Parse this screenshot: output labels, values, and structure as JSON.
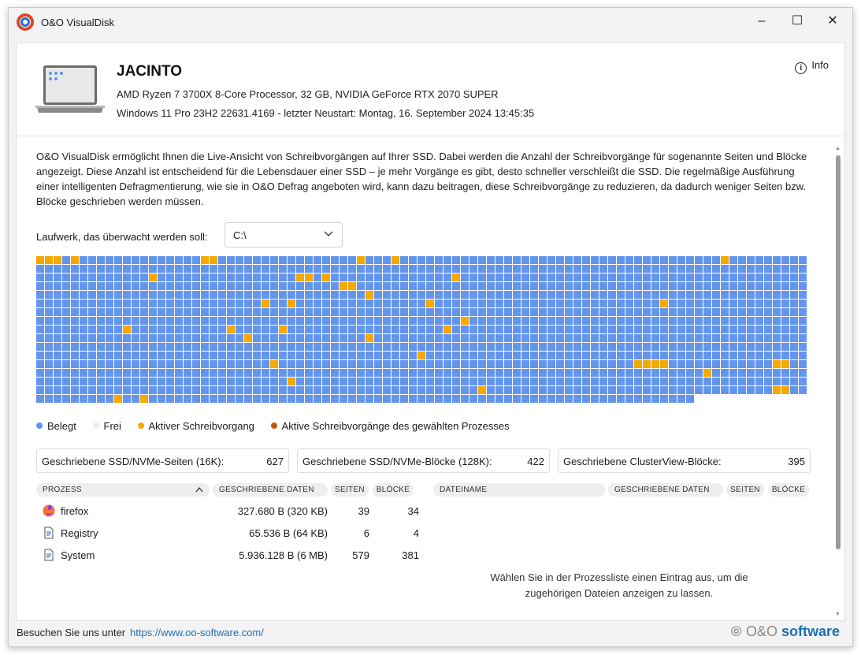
{
  "window": {
    "title": "O&O VisualDisk"
  },
  "header": {
    "hostname": "JACINTO",
    "hardware": "AMD Ryzen 7 3700X 8-Core Processor, 32 GB, NVIDIA GeForce RTX 2070 SUPER",
    "os": "Windows 11 Pro 23H2 22631.4169 - letzter Neustart: Montag, 16. September 2024 13:45:35",
    "info_label": "Info"
  },
  "description": "O&O VisualDisk ermöglicht Ihnen die Live-Ansicht von Schreibvorgängen auf Ihrer SSD. Dabei werden die Anzahl der Schreibvorgänge für sogenannte Seiten und Blöcke angezeigt. Diese Anzahl ist entscheidend für die Lebensdauer einer SSD – je mehr Vorgänge es gibt, desto schneller verschleißt die SSD. Die regelmäßige Ausführung einer intelligenten Defragmentierung, wie sie in O&O Defrag angeboten wird, kann dazu beitragen, diese Schreibvorgänge zu reduzieren, da dadurch weniger Seiten bzw. Blöcke geschrieben werden müssen.",
  "drive": {
    "label": "Laufwerk, das überwacht werden soll:",
    "selected": "C:\\"
  },
  "colors": {
    "occupied": "#6495ed",
    "free": "#eeeeee",
    "active": "#f5a800",
    "process_active": "#c05a00"
  },
  "block_map": {
    "columns": 89,
    "full_rows": 16,
    "last_row_blocks": 76,
    "active_blocks": [
      [
        0,
        0
      ],
      [
        0,
        1
      ],
      [
        0,
        2
      ],
      [
        0,
        4
      ],
      [
        0,
        19
      ],
      [
        0,
        20
      ],
      [
        0,
        37
      ],
      [
        0,
        41
      ],
      [
        0,
        79
      ],
      [
        2,
        13
      ],
      [
        2,
        30
      ],
      [
        2,
        31
      ],
      [
        2,
        33
      ],
      [
        2,
        48
      ],
      [
        3,
        35
      ],
      [
        3,
        36
      ],
      [
        4,
        38
      ],
      [
        5,
        26
      ],
      [
        5,
        29
      ],
      [
        5,
        45
      ],
      [
        5,
        72
      ],
      [
        7,
        49
      ],
      [
        8,
        10
      ],
      [
        8,
        22
      ],
      [
        8,
        28
      ],
      [
        8,
        47
      ],
      [
        9,
        24
      ],
      [
        9,
        38
      ],
      [
        11,
        44
      ],
      [
        12,
        27
      ],
      [
        12,
        69
      ],
      [
        12,
        70
      ],
      [
        12,
        71
      ],
      [
        12,
        72
      ],
      [
        12,
        85
      ],
      [
        12,
        86
      ],
      [
        13,
        77
      ],
      [
        14,
        29
      ],
      [
        15,
        51
      ],
      [
        15,
        85
      ],
      [
        15,
        86
      ],
      [
        16,
        9
      ],
      [
        16,
        12
      ]
    ]
  },
  "legend": [
    {
      "label": "Belegt",
      "color": "#6495ed"
    },
    {
      "label": "Frei",
      "color": "#eeeeee"
    },
    {
      "label": "Aktiver Schreibvorgang",
      "color": "#f5a800"
    },
    {
      "label": "Aktive Schreibvorgänge des gewählten Prozesses",
      "color": "#c05a00"
    }
  ],
  "stats": {
    "pages_label": "Geschriebene SSD/NVMe-Seiten (16K):",
    "pages_value": "627",
    "blocks_label": "Geschriebene SSD/NVMe-Blöcke (128K):",
    "blocks_value": "422",
    "clusterview_label": "Geschriebene ClusterView-Blöcke:",
    "clusterview_value": "395"
  },
  "process_table": {
    "headers": {
      "process": "PROZESS",
      "data": "GESCHRIEBENE DATEN",
      "pages": "SEITEN",
      "blocks": "BLÖCKE"
    },
    "rows": [
      {
        "icon": "firefox-icon",
        "name": "firefox",
        "data": "327.680 B (320 KB)",
        "pages": "39",
        "blocks": "34"
      },
      {
        "icon": "document-icon",
        "name": "Registry",
        "data": "65.536 B (64 KB)",
        "pages": "6",
        "blocks": "4"
      },
      {
        "icon": "document-icon",
        "name": "System",
        "data": "5.936.128 B (6 MB)",
        "pages": "579",
        "blocks": "381"
      }
    ]
  },
  "file_table": {
    "headers": {
      "filename": "DATEINAME",
      "data": "GESCHRIEBENE DATEN",
      "pages": "SEITEN",
      "blocks": "BLÖCKE"
    },
    "hint_line1": "Wählen Sie in der Prozessliste einen Eintrag aus, um die",
    "hint_line2": "zugehörigen Dateien anzeigen zu lassen."
  },
  "footer": {
    "text": "Besuchen Sie uns unter",
    "url": "https://www.oo-software.com/",
    "brand_a": "O&O",
    "brand_b": "software"
  }
}
